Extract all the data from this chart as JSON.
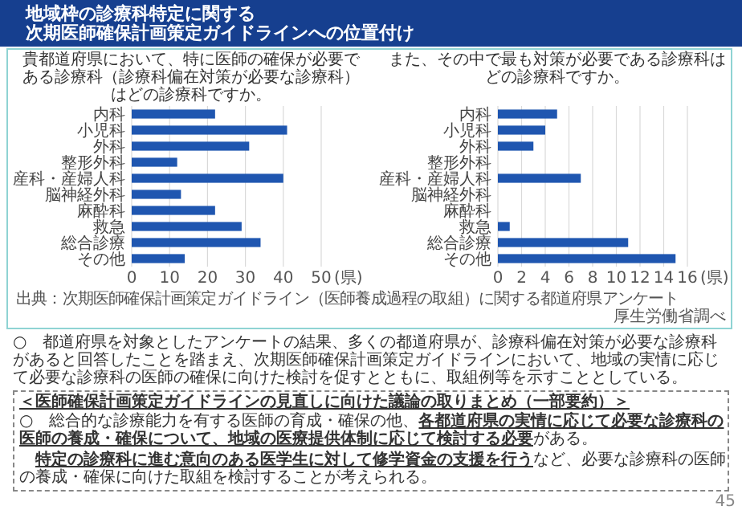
{
  "chart_data": [
    {
      "type": "bar",
      "orientation": "horizontal",
      "title": "貴都道府県において、特に医師の確保が必要である診療科（診療科偏在対策が必要な診療科）はどの診療科ですか。",
      "categories": [
        "内科",
        "小児科",
        "外科",
        "整形外科",
        "産科・産婦人科",
        "脳神経外科",
        "麻酔科",
        "救急",
        "総合診療",
        "その他"
      ],
      "values": [
        22,
        41,
        31,
        12,
        40,
        13,
        22,
        29,
        34,
        14
      ],
      "color": "#1f56b0",
      "xlim": [
        0,
        50
      ],
      "xticks": [
        0,
        10,
        20,
        30,
        40,
        50
      ],
      "xlabel": "(県)",
      "grid": "x",
      "annotations": [
        "地域枠の診療科特定に関する",
        "次期医師確保計画策定ガイドラインへの位置付け"
      ]
    },
    {
      "type": "bar",
      "orientation": "horizontal",
      "title": "また、その中で最も対策が必要である診療科はどの診療科ですか。",
      "categories": [
        "内科",
        "小児科",
        "外科",
        "整形外科",
        "産科・産婦人科",
        "脳神経外科",
        "麻酔科",
        "救急",
        "総合診療",
        "その他"
      ],
      "values": [
        5,
        4,
        3,
        0,
        7,
        0,
        0,
        1,
        11,
        15
      ],
      "color": "#1f56b0",
      "xlim": [
        0,
        16
      ],
      "xticks": [
        0,
        2,
        4,
        6,
        8,
        10,
        12,
        14,
        16
      ],
      "xlabel": "(県)",
      "grid": "x",
      "annotations": [
        "出典：次期医師確保計画策定ガイドライン（医師養成過程の取組）に関する都道府県アンケート",
        "厚生労働省調べ",
        "○　都道府県を対象としたアンケートの結果、多くの都道府県が、診療科偏在対策が必要な診療科があると回答したことを踏まえ、次期医師確保計画策定ガイドラインにおいて、地域の実情に応じて必要な診療科の医師の確保に向けた検討を促すとともに、取組例等を示すこととしている。",
        "＜医師確保計画策定ガイドラインの見直しに向けた議論の取りまとめ（一部要約）＞",
        "○　総合的な診療能力を有する医師の育成・確保の他、**各都道府県の実情に応じて必要な診療科の医師の養成・確保について、地域の医療提供体制に応じて検討する必要**がある。",
        "　**特定の診療科に進む意向のある医学生に対して修学資金の支援を行う**など、必要な診療科の医師の養成・確保に向けた取組を検討することが考えられる。",
        "45"
      ]
    }
  ]
}
